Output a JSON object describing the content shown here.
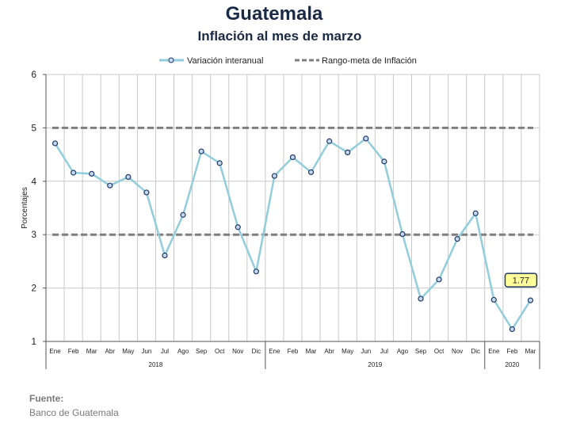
{
  "header": {
    "title": "Guatemala",
    "subtitle": "Inflación al mes de marzo"
  },
  "footer": {
    "source_label": "Fuente:",
    "source_value": "Banco de Guatemala"
  },
  "colors": {
    "series_line": "#92cddc",
    "marker_fill": "#c6d9f1",
    "marker_stroke": "#1f3864",
    "target_line": "#7f7f7f",
    "grid": "#c8c8c8",
    "callout_fill": "#ffff99",
    "callout_stroke": "#1f3864"
  },
  "chart_data": {
    "type": "line",
    "title": "Inflación al mes de marzo",
    "xlabel": "",
    "ylabel": "Porcentajes",
    "ylim": [
      1,
      6
    ],
    "yticks": [
      "1",
      "2",
      "3",
      "4",
      "5",
      "6"
    ],
    "grid": true,
    "legend_position": "top",
    "categories": [
      "Ene",
      "Feb",
      "Mar",
      "Abr",
      "May",
      "Jun",
      "Jul",
      "Ago",
      "Sep",
      "Oct",
      "Nov",
      "Dic",
      "Ene",
      "Feb",
      "Mar",
      "Abr",
      "May",
      "Jun",
      "Jul",
      "Ago",
      "Sep",
      "Oct",
      "Nov",
      "Dic",
      "Ene",
      "Feb",
      "Mar"
    ],
    "year_groups": [
      {
        "label": "2018",
        "count": 12
      },
      {
        "label": "2019",
        "count": 12
      },
      {
        "label": "2020",
        "count": 3
      }
    ],
    "series": [
      {
        "name": "Variación interanual",
        "values": [
          4.71,
          4.16,
          4.14,
          3.92,
          4.08,
          3.79,
          2.61,
          3.37,
          4.56,
          4.34,
          3.14,
          2.31,
          4.1,
          4.45,
          4.17,
          4.75,
          4.54,
          4.8,
          4.37,
          3.01,
          1.8,
          2.16,
          2.92,
          3.4,
          1.78,
          1.23,
          1.77
        ]
      },
      {
        "name": "Rango-meta de Inflación",
        "upper": 5,
        "lower": 3
      }
    ],
    "annotation": {
      "label": "1.77",
      "category_index": 26
    }
  }
}
